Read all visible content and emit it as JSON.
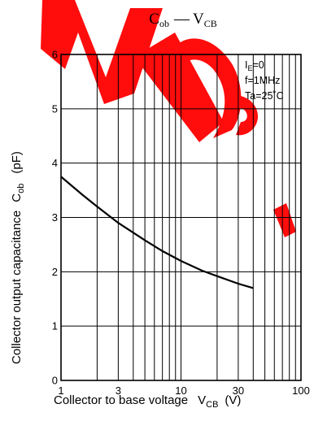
{
  "watermark": {
    "color": "#ff0000"
  },
  "chart_data": {
    "type": "line",
    "title": {
      "main": "C",
      "main_sub": "ob",
      "dash": "—",
      "second": "V",
      "second_sub": "CB"
    },
    "x_scale": "log",
    "xlim": [
      1,
      100
    ],
    "ylim": [
      0,
      6
    ],
    "grid": true,
    "x_ticks": [
      {
        "value": 1,
        "label": "1"
      },
      {
        "value": 3,
        "label": "3"
      },
      {
        "value": 10,
        "label": "10"
      },
      {
        "value": 30,
        "label": "30"
      },
      {
        "value": 100,
        "label": "100"
      }
    ],
    "y_ticks": [
      {
        "value": 0,
        "label": "0"
      },
      {
        "value": 1,
        "label": "1"
      },
      {
        "value": 2,
        "label": "2"
      },
      {
        "value": 3,
        "label": "3"
      },
      {
        "value": 4,
        "label": "4"
      },
      {
        "value": 5,
        "label": "5"
      },
      {
        "value": 6,
        "label": "6"
      }
    ],
    "xlabel": {
      "text": "Collector to base voltage",
      "sym": "V",
      "sub": "CB",
      "unit": "(V)"
    },
    "ylabel": {
      "text": "Collector output capacitance",
      "sym": "C",
      "sub": "ob",
      "unit": "(pF)"
    },
    "conditions": [
      {
        "main": "I",
        "sub": "E",
        "rest": "=0"
      },
      {
        "main": "f=1MHz",
        "sub": "",
        "rest": ""
      },
      {
        "main": "Ta=25˚C",
        "sub": "",
        "rest": ""
      }
    ],
    "series": [
      {
        "x": [
          1,
          1.5,
          2,
          3,
          5,
          7,
          10,
          15,
          20,
          30,
          40
        ],
        "y": [
          3.75,
          3.42,
          3.2,
          2.9,
          2.58,
          2.38,
          2.2,
          2.02,
          1.92,
          1.78,
          1.7
        ]
      }
    ]
  }
}
